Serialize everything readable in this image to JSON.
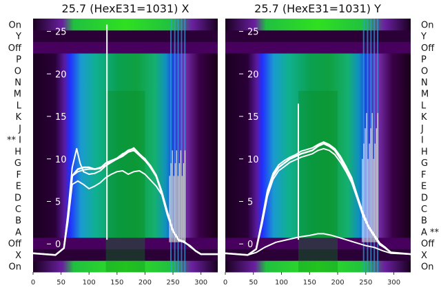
{
  "chart_data": [
    {
      "type": "heatmap",
      "title": "25.7 (HexE31=1031) X",
      "xlabel": "",
      "ylabel": "",
      "xlim": [
        0,
        330
      ],
      "ylim": [
        -3.3,
        26.5
      ],
      "x_ticks": [
        0,
        50,
        100,
        150,
        200,
        250,
        300
      ],
      "y_ticks": [
        0,
        5,
        10,
        15,
        20,
        25
      ],
      "row_labels": [
        "On",
        "X",
        "Off",
        "A",
        "B",
        "C",
        "D",
        "E",
        "F",
        "G",
        "H",
        "** I",
        "J",
        "K",
        "L",
        "M",
        "N",
        "O",
        "P",
        "Off",
        "Y",
        "On"
      ],
      "row_label_side": "left",
      "series": [
        {
          "x": [
            0,
            40,
            55,
            62,
            70,
            80,
            90,
            100,
            110,
            120,
            130,
            140,
            150,
            160,
            170,
            180,
            190,
            200,
            210,
            220,
            230,
            240,
            250,
            260,
            270,
            280,
            290,
            300,
            330
          ],
          "values": [
            -1.1,
            -1.3,
            -0.5,
            3,
            8,
            8.8,
            9,
            9,
            8.8,
            8.9,
            9.5,
            9.8,
            10,
            10.5,
            11,
            11.2,
            10.5,
            10,
            9,
            8,
            6,
            3.5,
            1.5,
            0.5,
            0.2,
            -0.2,
            -0.8,
            -1.2,
            -1.2
          ]
        },
        {
          "x": [
            0,
            40,
            55,
            62,
            70,
            78,
            84,
            90,
            100,
            110,
            120,
            130,
            140,
            150,
            160,
            170,
            180,
            190,
            200,
            210,
            220,
            230,
            240,
            250,
            260,
            270,
            280,
            290,
            300,
            330
          ],
          "values": [
            -1.1,
            -1.3,
            -0.5,
            3.5,
            9,
            11.2,
            9.5,
            8.5,
            8.2,
            8.3,
            8.6,
            9.2,
            9.8,
            10.1,
            10.6,
            10.9,
            11.3,
            10.6,
            10,
            9.2,
            8.1,
            6.2,
            3.8,
            1.6,
            0.5,
            0.3,
            -0.3,
            -0.8,
            -1.2,
            -1.2
          ]
        },
        {
          "x": [
            0,
            40,
            55,
            62,
            70,
            80,
            90,
            100,
            110,
            120,
            130,
            140,
            150,
            160,
            170,
            180,
            190,
            200,
            210,
            220,
            230,
            240,
            250,
            260,
            270,
            280,
            290,
            300,
            330
          ],
          "values": [
            -1.1,
            -1.3,
            -0.5,
            2.5,
            7,
            7.4,
            7,
            6.5,
            6.8,
            7.2,
            7.8,
            8.2,
            8.5,
            8.6,
            8.2,
            8.5,
            8.6,
            8.2,
            7.5,
            6.8,
            5.8,
            3.4,
            1.5,
            0.4,
            0.2,
            -0.2,
            -0.8,
            -1.2,
            -1.2
          ]
        },
        {
          "x": [
            0,
            40,
            55,
            62,
            70,
            80,
            90,
            100,
            110,
            120,
            130,
            140,
            150,
            160,
            170,
            180,
            190,
            200,
            210,
            220,
            230,
            240,
            250,
            260,
            270,
            280,
            290,
            300,
            330
          ],
          "values": [
            -1.1,
            -1.3,
            -0.5,
            3,
            8,
            8.5,
            8.7,
            8.8,
            8.8,
            9,
            9.2,
            9.6,
            10,
            10.3,
            10.8,
            11,
            10.4,
            9.8,
            9,
            7.9,
            6,
            3.5,
            1.5,
            0.5,
            0.2,
            -0.2,
            -0.8,
            -1.2,
            -1.2
          ]
        }
      ]
    },
    {
      "type": "heatmap",
      "title": "25.7 (HexE31=1031) Y",
      "xlabel": "",
      "ylabel": "",
      "xlim": [
        0,
        330
      ],
      "ylim": [
        -3.3,
        26.5
      ],
      "x_ticks": [
        0,
        50,
        100,
        150,
        200,
        250,
        300
      ],
      "y_ticks": [
        0,
        5,
        10,
        15,
        20,
        25
      ],
      "row_labels": [
        "On",
        "X",
        "Off",
        "A **",
        "B",
        "C",
        "D",
        "E",
        "F",
        "G",
        "H",
        "I",
        "J",
        "K",
        "L",
        "M",
        "N",
        "O",
        "P",
        "Off",
        "Y",
        "On"
      ],
      "row_label_side": "right",
      "series": [
        {
          "x": [
            0,
            40,
            55,
            65,
            75,
            85,
            95,
            105,
            115,
            125,
            135,
            145,
            155,
            165,
            175,
            185,
            195,
            205,
            215,
            225,
            235,
            245,
            255,
            265,
            275,
            285,
            295,
            330
          ],
          "values": [
            -1.1,
            -1.3,
            -0.6,
            2.5,
            6,
            8,
            9,
            9.5,
            10,
            10.3,
            10.6,
            10.8,
            11,
            11.5,
            11.8,
            11.5,
            11,
            10,
            8.8,
            7.5,
            5.5,
            3.5,
            2,
            1,
            0,
            -0.5,
            -1,
            -1.2
          ]
        },
        {
          "x": [
            0,
            40,
            55,
            65,
            75,
            85,
            95,
            105,
            115,
            125,
            135,
            145,
            155,
            165,
            175,
            185,
            195,
            205,
            215,
            225,
            235,
            245,
            255,
            265,
            275,
            285,
            295,
            330
          ],
          "values": [
            -1.1,
            -1.3,
            -0.6,
            2.2,
            5.6,
            7.6,
            8.6,
            9.1,
            9.6,
            9.9,
            10.2,
            10.4,
            10.6,
            11,
            11.2,
            11,
            10.5,
            9.6,
            8.5,
            7.2,
            5.3,
            3.3,
            1.9,
            0.9,
            -0.1,
            -0.5,
            -1,
            -1.2
          ]
        },
        {
          "x": [
            0,
            40,
            55,
            65,
            75,
            85,
            95,
            105,
            115,
            125,
            135,
            145,
            155,
            165,
            175,
            185,
            195,
            205,
            215,
            225,
            235,
            245,
            255,
            265,
            275,
            285,
            295,
            330
          ],
          "values": [
            -1.1,
            -1.3,
            -0.6,
            2.8,
            6.3,
            8.3,
            9.3,
            9.8,
            10.2,
            10.5,
            10.9,
            11.1,
            11.3,
            11.7,
            12,
            11.7,
            11.2,
            10.3,
            9.1,
            7.8,
            5.7,
            3.7,
            2.1,
            1.1,
            0.1,
            -0.4,
            -1,
            -1.2
          ]
        },
        {
          "x": [
            0,
            40,
            55,
            70,
            90,
            110,
            130,
            150,
            165,
            175,
            190,
            210,
            230,
            250,
            265,
            280,
            295,
            330
          ],
          "values": [
            -1.1,
            -1.3,
            -1,
            -0.4,
            0.2,
            0.5,
            0.8,
            1,
            1.2,
            1.2,
            1,
            0.6,
            0.2,
            -0.2,
            -0.4,
            -0.8,
            -1.1,
            -1.2
          ]
        }
      ]
    }
  ]
}
